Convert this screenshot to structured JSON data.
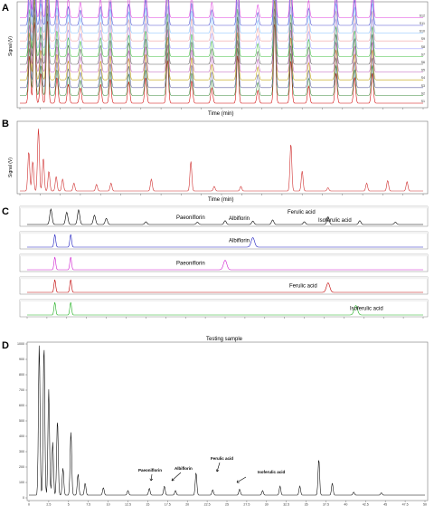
{
  "figure": {
    "panel_labels": [
      "A",
      "B",
      "C",
      "D"
    ]
  },
  "chart_data": [
    {
      "panel": "A",
      "type": "line",
      "xlabel": "Time (min)",
      "ylabel": "Signal (V)",
      "xlim": [
        0,
        50
      ],
      "series_colors": [
        "#d00000",
        "#3a8a3a",
        "#6060a0",
        "#c0a000",
        "#c060c0",
        "#606060",
        "#40c040",
        "#a0a0ff",
        "#f0a0a0",
        "#80c0ff",
        "#5050d0",
        "#e040e0"
      ],
      "peaks": [
        {
          "t": 1.2,
          "h": 0.55
        },
        {
          "t": 1.8,
          "h": 0.95
        },
        {
          "t": 2.6,
          "h": 0.35
        },
        {
          "t": 3.4,
          "h": 0.98
        },
        {
          "t": 4.6,
          "h": 0.3
        },
        {
          "t": 6.0,
          "h": 0.22
        },
        {
          "t": 7.5,
          "h": 0.18
        },
        {
          "t": 10.0,
          "h": 0.22
        },
        {
          "t": 11.2,
          "h": 0.28
        },
        {
          "t": 13.5,
          "h": 0.25
        },
        {
          "t": 15.6,
          "h": 0.3
        },
        {
          "t": 18.3,
          "h": 0.5
        },
        {
          "t": 21.3,
          "h": 0.26
        },
        {
          "t": 23.8,
          "h": 0.18
        },
        {
          "t": 27.0,
          "h": 0.55
        },
        {
          "t": 29.5,
          "h": 0.15
        },
        {
          "t": 31.6,
          "h": 0.94
        },
        {
          "t": 33.6,
          "h": 0.5
        },
        {
          "t": 35.8,
          "h": 0.2
        },
        {
          "t": 39.2,
          "h": 0.35
        },
        {
          "t": 41.5,
          "h": 0.3
        },
        {
          "t": 43.7,
          "h": 0.35
        }
      ],
      "legend": [
        "S1",
        "S2",
        "S3",
        "S4",
        "S5",
        "S6",
        "S7",
        "S8",
        "S9",
        "S10",
        "S11",
        "S12"
      ]
    },
    {
      "panel": "B",
      "type": "line",
      "xlabel": "Time (min)",
      "ylabel": "Signal (V)",
      "xlim": [
        0,
        50
      ],
      "color": "#d03030",
      "peaks": [
        {
          "t": 1.1,
          "h": 0.6
        },
        {
          "t": 1.6,
          "h": 0.45
        },
        {
          "t": 2.3,
          "h": 0.95
        },
        {
          "t": 2.9,
          "h": 0.5
        },
        {
          "t": 3.6,
          "h": 0.3
        },
        {
          "t": 4.5,
          "h": 0.22
        },
        {
          "t": 5.3,
          "h": 0.18
        },
        {
          "t": 6.7,
          "h": 0.12
        },
        {
          "t": 9.5,
          "h": 0.1
        },
        {
          "t": 11.3,
          "h": 0.12
        },
        {
          "t": 16.3,
          "h": 0.18
        },
        {
          "t": 21.2,
          "h": 0.45
        },
        {
          "t": 24.1,
          "h": 0.07
        },
        {
          "t": 27.4,
          "h": 0.07
        },
        {
          "t": 33.6,
          "h": 0.72
        },
        {
          "t": 35.0,
          "h": 0.3
        },
        {
          "t": 38.2,
          "h": 0.05
        },
        {
          "t": 43.0,
          "h": 0.12
        },
        {
          "t": 45.6,
          "h": 0.16
        },
        {
          "t": 48.0,
          "h": 0.14
        }
      ]
    },
    {
      "panel": "C",
      "type": "line",
      "tracks": [
        {
          "name": "",
          "color": "#000000",
          "annotations": [
            "Paeoniflorin",
            "Albiflorin",
            "Ferulic acid",
            "Isoferulic acid"
          ],
          "peaks": [
            {
              "t": 0.06,
              "h": 1.0
            },
            {
              "t": 0.1,
              "h": 0.8
            },
            {
              "t": 0.13,
              "h": 0.95
            },
            {
              "t": 0.17,
              "h": 0.6
            },
            {
              "t": 0.2,
              "h": 0.4
            },
            {
              "t": 0.3,
              "h": 0.18
            },
            {
              "t": 0.43,
              "h": 0.15
            },
            {
              "t": 0.5,
              "h": 0.25
            },
            {
              "t": 0.57,
              "h": 0.22
            },
            {
              "t": 0.62,
              "h": 0.3
            },
            {
              "t": 0.7,
              "h": 0.18
            },
            {
              "t": 0.76,
              "h": 0.5
            },
            {
              "t": 0.84,
              "h": 0.25
            },
            {
              "t": 0.93,
              "h": 0.15
            }
          ]
        },
        {
          "name": "Albiflorin",
          "color": "#2020c0",
          "peak_t": 0.57
        },
        {
          "name": "Paeoniflorin",
          "color": "#d020d0",
          "peak_t": 0.5
        },
        {
          "name": "Ferulic acid",
          "color": "#c00000",
          "peak_t": 0.76
        },
        {
          "name": "Isoferulic acid",
          "color": "#20b020",
          "peak_t": 0.83
        }
      ]
    },
    {
      "panel": "D",
      "type": "line",
      "title": "Testing sample",
      "color": "#000000",
      "xlim": [
        0,
        50
      ],
      "ylim": [
        0,
        1000
      ],
      "yticks": [
        0,
        100,
        200,
        300,
        400,
        500,
        600,
        700,
        800,
        900,
        1000
      ],
      "xticks": [
        0,
        2.5,
        5,
        7.5,
        10,
        12.5,
        15,
        17.5,
        20,
        22.5,
        25,
        27.5,
        30,
        32.5,
        35,
        37.5,
        40,
        42.5,
        45,
        47.5,
        50
      ],
      "peaks": [
        {
          "t": 1.3,
          "h": 1000
        },
        {
          "t": 1.9,
          "h": 1000
        },
        {
          "t": 2.5,
          "h": 700
        },
        {
          "t": 3.0,
          "h": 350
        },
        {
          "t": 3.6,
          "h": 500
        },
        {
          "t": 4.3,
          "h": 180
        },
        {
          "t": 5.3,
          "h": 420
        },
        {
          "t": 6.2,
          "h": 140
        },
        {
          "t": 7.1,
          "h": 80
        },
        {
          "t": 9.4,
          "h": 50
        },
        {
          "t": 12.5,
          "h": 30
        },
        {
          "t": 15.2,
          "h": 45
        },
        {
          "t": 17.1,
          "h": 60
        },
        {
          "t": 18.5,
          "h": 30
        },
        {
          "t": 21.1,
          "h": 150
        },
        {
          "t": 23.2,
          "h": 35
        },
        {
          "t": 26.6,
          "h": 40
        },
        {
          "t": 29.5,
          "h": 30
        },
        {
          "t": 31.7,
          "h": 60
        },
        {
          "t": 34.2,
          "h": 60
        },
        {
          "t": 36.6,
          "h": 240
        },
        {
          "t": 38.3,
          "h": 80
        },
        {
          "t": 41.0,
          "h": 20
        },
        {
          "t": 44.5,
          "h": 15
        }
      ],
      "annotations": [
        "Paeoniflorin",
        "Albiflorin",
        "Ferulic acid",
        "Isoferulic acid"
      ]
    }
  ]
}
